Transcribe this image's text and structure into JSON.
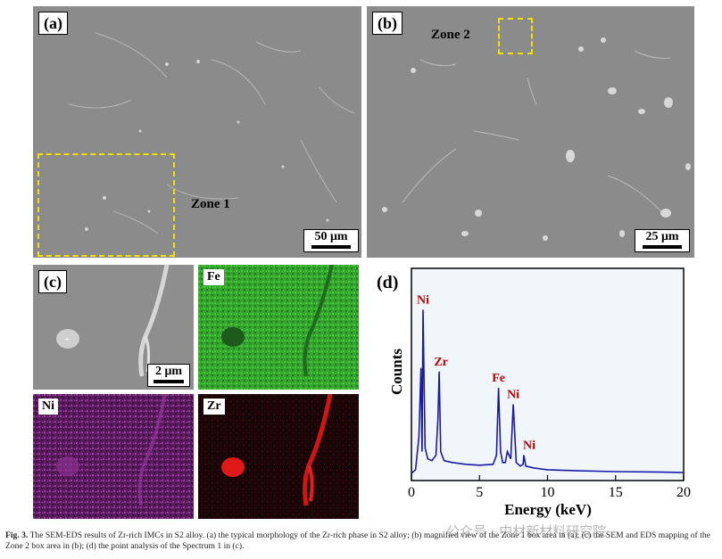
{
  "panels": {
    "a": {
      "label": "(a)",
      "zone": "Zone 1",
      "scale": "50 μm"
    },
    "b": {
      "label": "(b)",
      "zone": "Zone 2",
      "scale": "25 μm"
    },
    "c": {
      "label": "(c)",
      "scale": "2 μm"
    },
    "fe": {
      "label": "Fe"
    },
    "ni": {
      "label": "Ni"
    },
    "zr": {
      "label": "Zr"
    },
    "d": {
      "label": "(d)"
    }
  },
  "chart_data": {
    "type": "line",
    "xlabel": "Energy (keV)",
    "ylabel": "Counts",
    "xlim": [
      0,
      20
    ],
    "xticks": [
      0,
      5,
      10,
      15,
      20
    ],
    "series": [
      {
        "x": [
          0.0,
          0.3,
          0.55,
          0.7,
          0.78,
          0.85,
          1.0,
          1.2,
          1.5,
          1.8,
          1.95,
          2.04,
          2.15,
          2.4,
          3.0,
          4.0,
          5.0,
          6.0,
          6.25,
          6.4,
          6.55,
          6.7,
          6.9,
          7.05,
          7.3,
          7.48,
          7.7,
          8.0,
          8.2,
          8.26,
          8.4,
          9.0,
          10.0,
          12.0,
          15.0,
          18.0,
          20.0
        ],
        "y": [
          0.0,
          0.02,
          0.2,
          0.58,
          0.12,
          0.9,
          0.14,
          0.08,
          0.07,
          0.1,
          0.3,
          0.56,
          0.12,
          0.07,
          0.06,
          0.05,
          0.045,
          0.05,
          0.1,
          0.47,
          0.12,
          0.06,
          0.06,
          0.12,
          0.08,
          0.38,
          0.06,
          0.04,
          0.05,
          0.1,
          0.04,
          0.03,
          0.02,
          0.015,
          0.01,
          0.008,
          0.005
        ]
      }
    ],
    "annotations": [
      {
        "text": "Ni",
        "x": 0.85
      },
      {
        "text": "Zr",
        "x": 2.04
      },
      {
        "text": "Fe",
        "x": 6.4
      },
      {
        "text": "Ni",
        "x": 7.48
      },
      {
        "text": "Ni",
        "x": 8.26
      }
    ]
  },
  "caption": {
    "fig": "Fig. 3.",
    "text": "The SEM-EDS results of Zr-rich IMCs in S2 alloy. (a) the typical morphology of the Zr-rich phase in S2 alloy; (b) magnified view of the Zone 1 box area in (a); (c) the SEM and EDS mapping of the Zone 2 box area in (b); (d) the point analysis of the Spectrum 1 in (c)."
  },
  "watermark": "公众号 · 中材新材料研究院"
}
